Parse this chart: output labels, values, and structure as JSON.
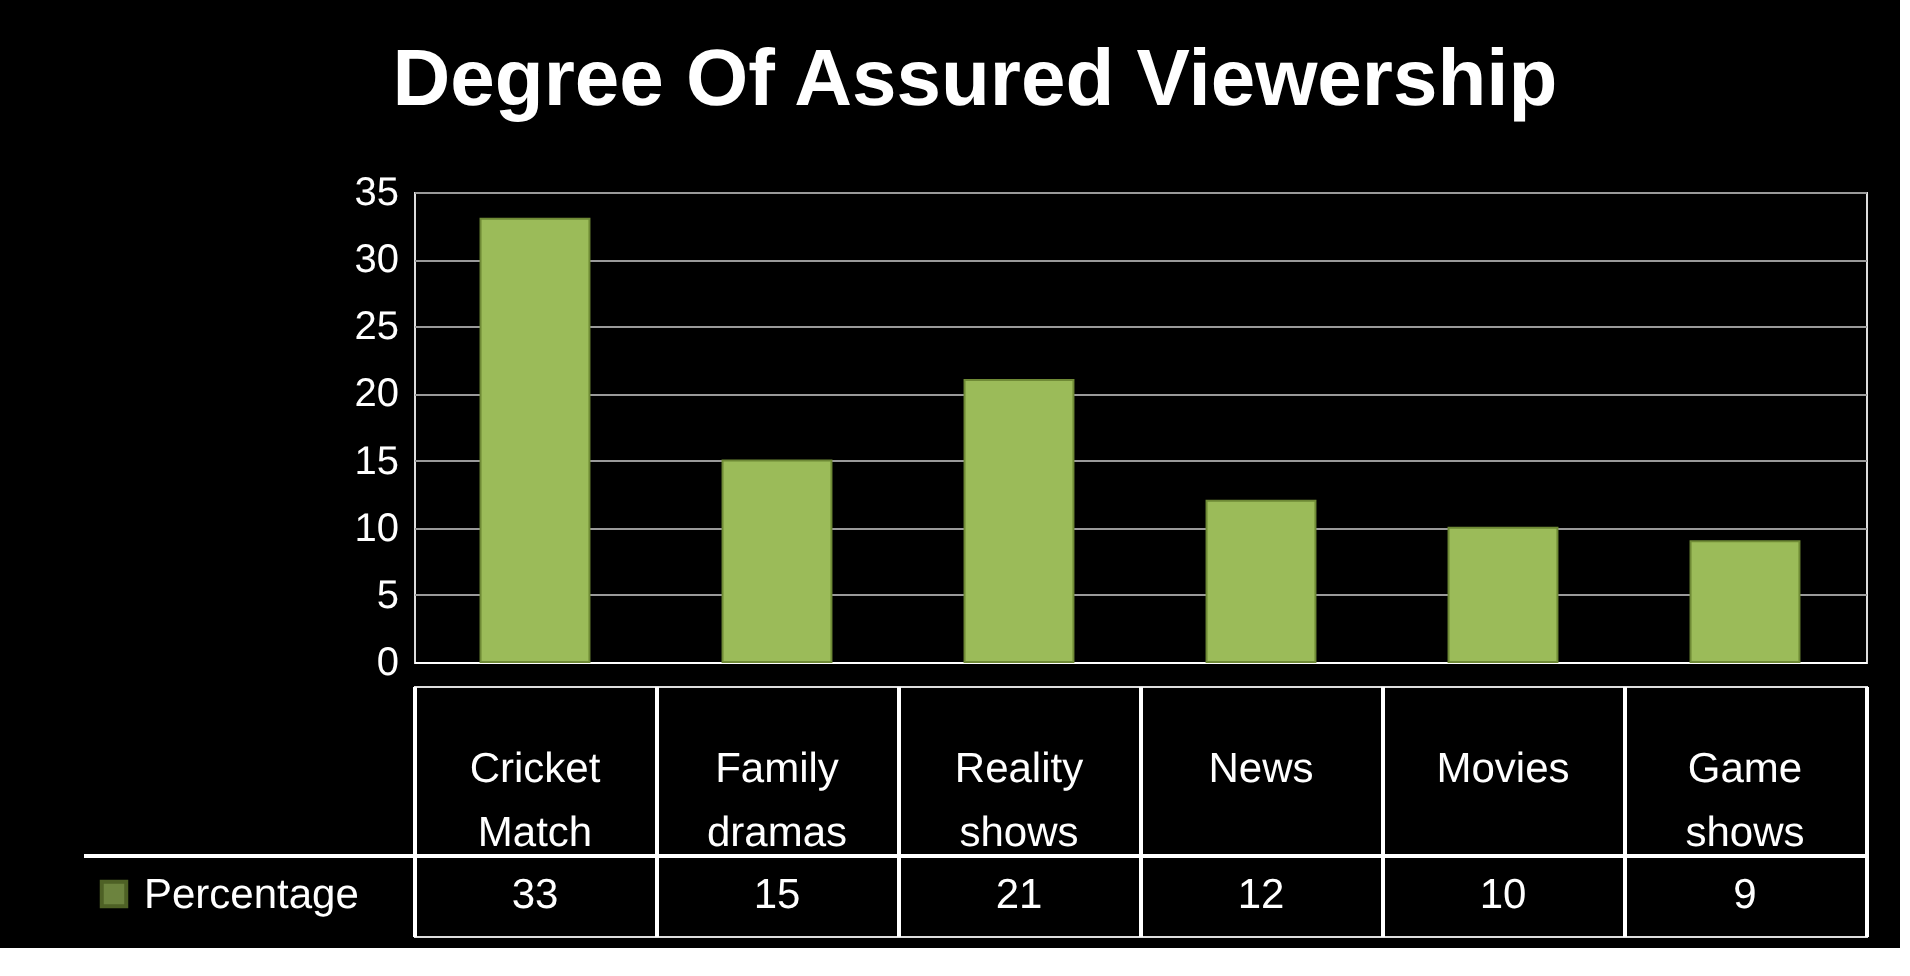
{
  "chart_data": {
    "type": "bar",
    "title": "Degree Of Assured Viewership",
    "categories": [
      "Cricket Match",
      "Family dramas",
      "Reality shows",
      "News",
      "Movies",
      "Game shows"
    ],
    "series": [
      {
        "name": "Percentage",
        "color": "#9bbb59",
        "values": [
          33,
          15,
          21,
          12,
          10,
          9
        ]
      }
    ],
    "ylim": [
      0,
      35
    ],
    "yticks": [
      0,
      5,
      10,
      15,
      20,
      25,
      30,
      35
    ],
    "grid": "y",
    "data_labels": true,
    "legend": "bottom"
  }
}
